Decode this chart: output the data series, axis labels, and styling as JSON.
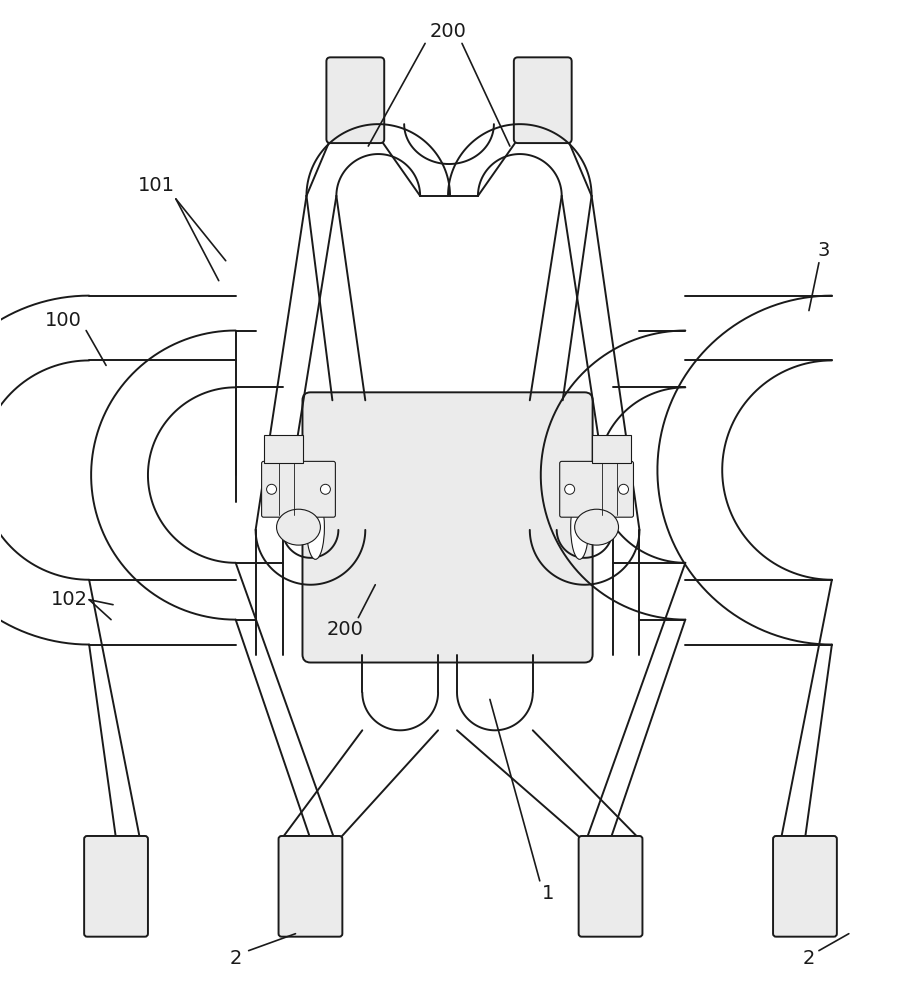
{
  "bg_color": "#ffffff",
  "line_color": "#1a1a1a",
  "vlg": "#ebebeb",
  "figsize": [
    9.21,
    10.0
  ],
  "dpi": 100,
  "lw_main": 1.4,
  "lw_thin": 0.8,
  "label_fs": 14
}
